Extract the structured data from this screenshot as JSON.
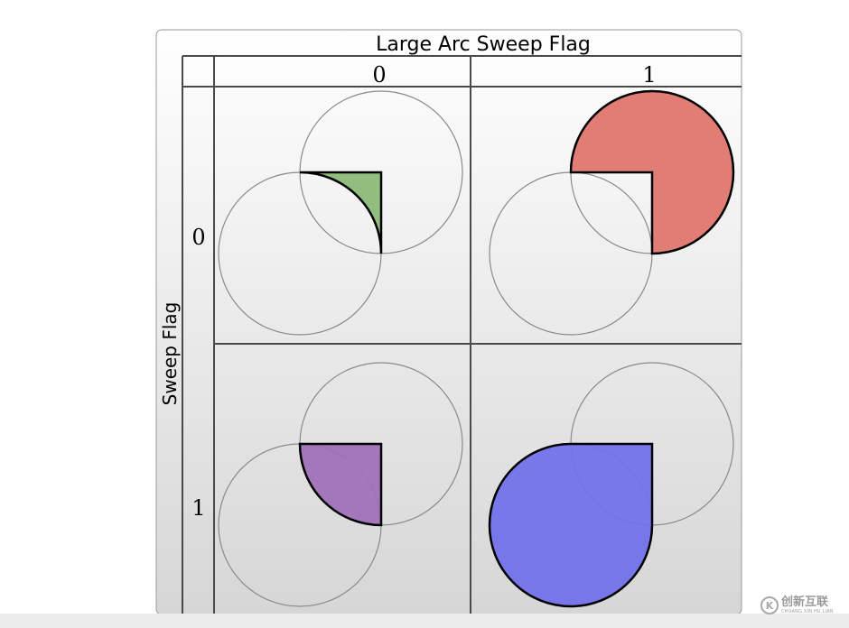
{
  "headers": {
    "column_title": "Large Arc Sweep Flag",
    "row_title": "Sweep Flag",
    "columns": [
      "0",
      "1"
    ],
    "rows": [
      "0",
      "1"
    ]
  },
  "cells": [
    {
      "large_arc": 0,
      "sweep": 0,
      "fill": "#8bbb77"
    },
    {
      "large_arc": 1,
      "sweep": 0,
      "fill": "#e0766f"
    },
    {
      "large_arc": 0,
      "sweep": 1,
      "fill": "#a070b8"
    },
    {
      "large_arc": 1,
      "sweep": 1,
      "fill": "#7272ea"
    }
  ],
  "colors": {
    "stroke": "#000000",
    "guide_circle": "#8a8a8a",
    "grid_line": "#4a4a4a",
    "panel_top": "#ffffff",
    "panel_bottom": "#d6d6d6"
  },
  "watermark": {
    "icon_glyph": "K",
    "main": "创新互联",
    "sub": "CHUANG XIN HU LIAN"
  }
}
